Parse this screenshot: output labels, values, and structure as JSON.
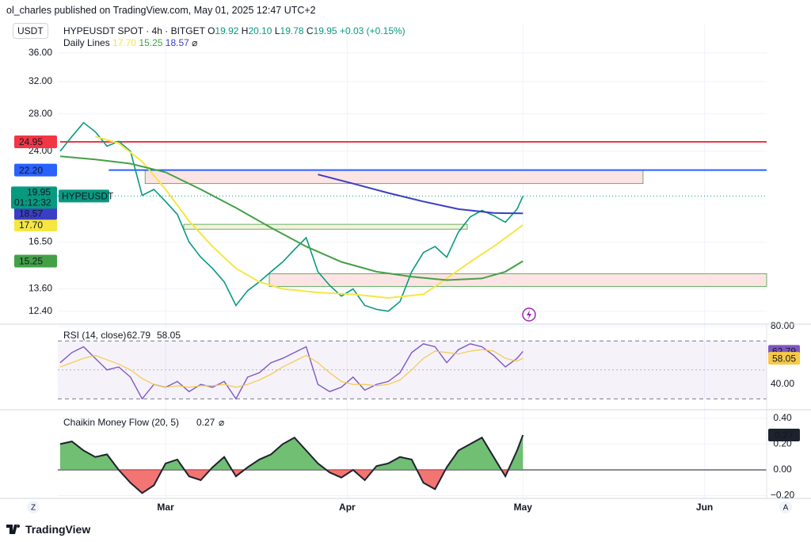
{
  "header": {
    "published": "ol_charles published on TradingView.com, May 01, 2025 12:47 UTC+2",
    "currency": "USDT",
    "symbol": "HYPEUSDT SPOT · 4h · BITGET",
    "ohlc": [
      {
        "key": "O",
        "value": "19.92"
      },
      {
        "key": "H",
        "value": "20.10"
      },
      {
        "key": "L",
        "value": "19.78"
      },
      {
        "key": "C",
        "value": "19.95"
      }
    ],
    "change": "+0.03 (+0.15%)",
    "study": "Daily Lines",
    "study_icon": "⌀"
  },
  "chart_data": [
    {
      "type": "line",
      "log_scale": true,
      "grid": true,
      "x": [
        42,
        44,
        46,
        48,
        50,
        52,
        54,
        56,
        58,
        60,
        62,
        64,
        66,
        68,
        70,
        72,
        74,
        76,
        78,
        80,
        82,
        84,
        86,
        88,
        90,
        92,
        94,
        96,
        98,
        100,
        102,
        104,
        106,
        108,
        110,
        112,
        114,
        116,
        118,
        120,
        121
      ],
      "xlim": [
        41.6,
        162.6
      ],
      "xticks": [
        {
          "value": 60,
          "label": "Mar"
        },
        {
          "value": 91,
          "label": "Apr"
        },
        {
          "value": 121,
          "label": "May"
        },
        {
          "value": 152,
          "label": "Jun"
        }
      ],
      "ylim": [
        11.8,
        40.6
      ],
      "yticks": [
        {
          "value": 36,
          "label": "36.00"
        },
        {
          "value": 32,
          "label": "32.00"
        },
        {
          "value": 28,
          "label": "28.00"
        },
        {
          "value": 24,
          "label": "24.00"
        },
        {
          "value": 16.5,
          "label": "16.50"
        },
        {
          "value": 13.6,
          "label": "13.60"
        },
        {
          "value": 12.4,
          "label": "12.40"
        }
      ],
      "series": [
        {
          "name": "HYPEUSDT",
          "color": "#089981",
          "values": [
            24,
            25.5,
            27,
            26,
            24.5,
            25,
            24,
            20,
            20.5,
            19.5,
            18.5,
            16.5,
            15.5,
            14.8,
            14,
            12.7,
            13.5,
            14,
            14.6,
            15.2,
            16,
            16.8,
            14.6,
            13.8,
            13.2,
            13.6,
            12.7,
            12.5,
            12.4,
            12.9,
            14.6,
            15.8,
            16.2,
            15.5,
            17.2,
            18.3,
            18.8,
            18.4,
            17.9,
            18.9,
            19.95
          ]
        },
        {
          "color": "#f5e642",
          "last_label": "17.70",
          "x": [
            48,
            52,
            56,
            60,
            64,
            68,
            72,
            76,
            80,
            86,
            92,
            98,
            104,
            108,
            112,
            116,
            121
          ],
          "values": [
            25.5,
            24.8,
            23,
            20.5,
            18,
            16.2,
            14.8,
            14,
            13.6,
            13.4,
            13.3,
            13.1,
            13.3,
            14.2,
            15.2,
            16.2,
            17.7
          ]
        },
        {
          "color": "#43a047",
          "last_label": "15.25",
          "x": [
            42,
            48,
            54,
            60,
            66,
            72,
            78,
            84,
            90,
            96,
            102,
            108,
            114,
            118,
            121
          ],
          "values": [
            23.5,
            23.2,
            22.8,
            22,
            20.5,
            19,
            17.5,
            16.2,
            15.2,
            14.6,
            14.3,
            14.1,
            14.2,
            14.6,
            15.25
          ]
        },
        {
          "color": "#3a3ec4",
          "last_label": "18.57",
          "x": [
            86,
            92,
            98,
            104,
            110,
            116,
            121
          ],
          "values": [
            21.8,
            21,
            20.2,
            19.5,
            18.9,
            18.6,
            18.57
          ]
        }
      ],
      "levels": [
        {
          "value": 24.95,
          "label": "24.95",
          "color": "#f23645",
          "start": 42
        },
        {
          "value": 22.2,
          "label": "22.20",
          "color": "#2962ff",
          "start": 50.3
        }
      ],
      "zones": [
        {
          "high": 22.2,
          "low": 21.0,
          "start": 56.5,
          "end": 141.5,
          "fill": "#fde4e4",
          "stroke": "#43a047"
        },
        {
          "high": 17.75,
          "low": 17.4,
          "start": 63.1,
          "end": 111.5,
          "fill": "#f6f2dc",
          "stroke": "#43a047"
        },
        {
          "high": 14.48,
          "low": 13.74,
          "start": 77.7,
          "end": 162.6,
          "fill": "#fde4e4",
          "stroke": "#43a047"
        }
      ],
      "current": {
        "value": 19.95,
        "label": "19.95",
        "countdown": "01:12:32",
        "color": "#089981"
      }
    },
    {
      "type": "line",
      "title": "RSI (14, close)",
      "ylim": [
        23.6,
        81.1
      ],
      "yticks": [
        {
          "value": 80,
          "label": "80.00"
        },
        {
          "value": 40,
          "label": "40.00"
        }
      ],
      "bands": [
        70,
        30
      ],
      "midline": 50,
      "band_color": "#7e57c2",
      "series": [
        {
          "color": "#7e57c2",
          "value_label": "62.79",
          "values": [
            55,
            62,
            66,
            58,
            50,
            52,
            45,
            30,
            40,
            38,
            42,
            35,
            40,
            38,
            42,
            30,
            45,
            48,
            55,
            58,
            62,
            66,
            40,
            35,
            38,
            45,
            36,
            40,
            42,
            48,
            62,
            68,
            66,
            55,
            64,
            68,
            66,
            60,
            52,
            58,
            62.79
          ]
        },
        {
          "color": "#f7c948",
          "value_label": "58.05",
          "values": [
            52,
            55,
            58,
            60,
            57,
            54,
            50,
            44,
            40,
            38,
            39,
            38,
            39,
            39,
            40,
            38,
            40,
            43,
            47,
            52,
            56,
            60,
            55,
            48,
            42,
            40,
            40,
            39,
            40,
            43,
            50,
            58,
            63,
            62,
            61,
            63,
            64,
            63,
            58,
            56,
            58.05
          ]
        }
      ]
    },
    {
      "type": "area",
      "title": "Chaikin Money Flow (20, 5)",
      "title_icon": "⌀",
      "ylim": [
        -0.215,
        0.46
      ],
      "yticks": [
        {
          "value": 0.4,
          "label": "0.40"
        },
        {
          "value": 0.2,
          "label": "0.20"
        },
        {
          "value": 0,
          "label": "0.00"
        },
        {
          "value": -0.2,
          "label": "−0.20"
        }
      ],
      "positive_color": "#4caf50",
      "negative_color": "#ef5350",
      "series": [
        {
          "color": "#1e222d",
          "value_label": "0.27",
          "values": [
            0.2,
            0.22,
            0.15,
            0.1,
            0.12,
            0,
            -0.1,
            -0.18,
            -0.12,
            0.05,
            0.08,
            -0.05,
            -0.08,
            0.02,
            0.1,
            -0.05,
            0.02,
            0.08,
            0.12,
            0.2,
            0.25,
            0.15,
            0.05,
            -0.02,
            -0.06,
            0,
            -0.08,
            0.03,
            0.05,
            0.1,
            0.08,
            -0.1,
            -0.15,
            0.02,
            0.15,
            0.2,
            0.25,
            0.1,
            -0.05,
            0.15,
            0.27
          ]
        }
      ]
    }
  ],
  "footer": {
    "logo": "TradingView",
    "left_button": "Z",
    "right_button": "A"
  }
}
